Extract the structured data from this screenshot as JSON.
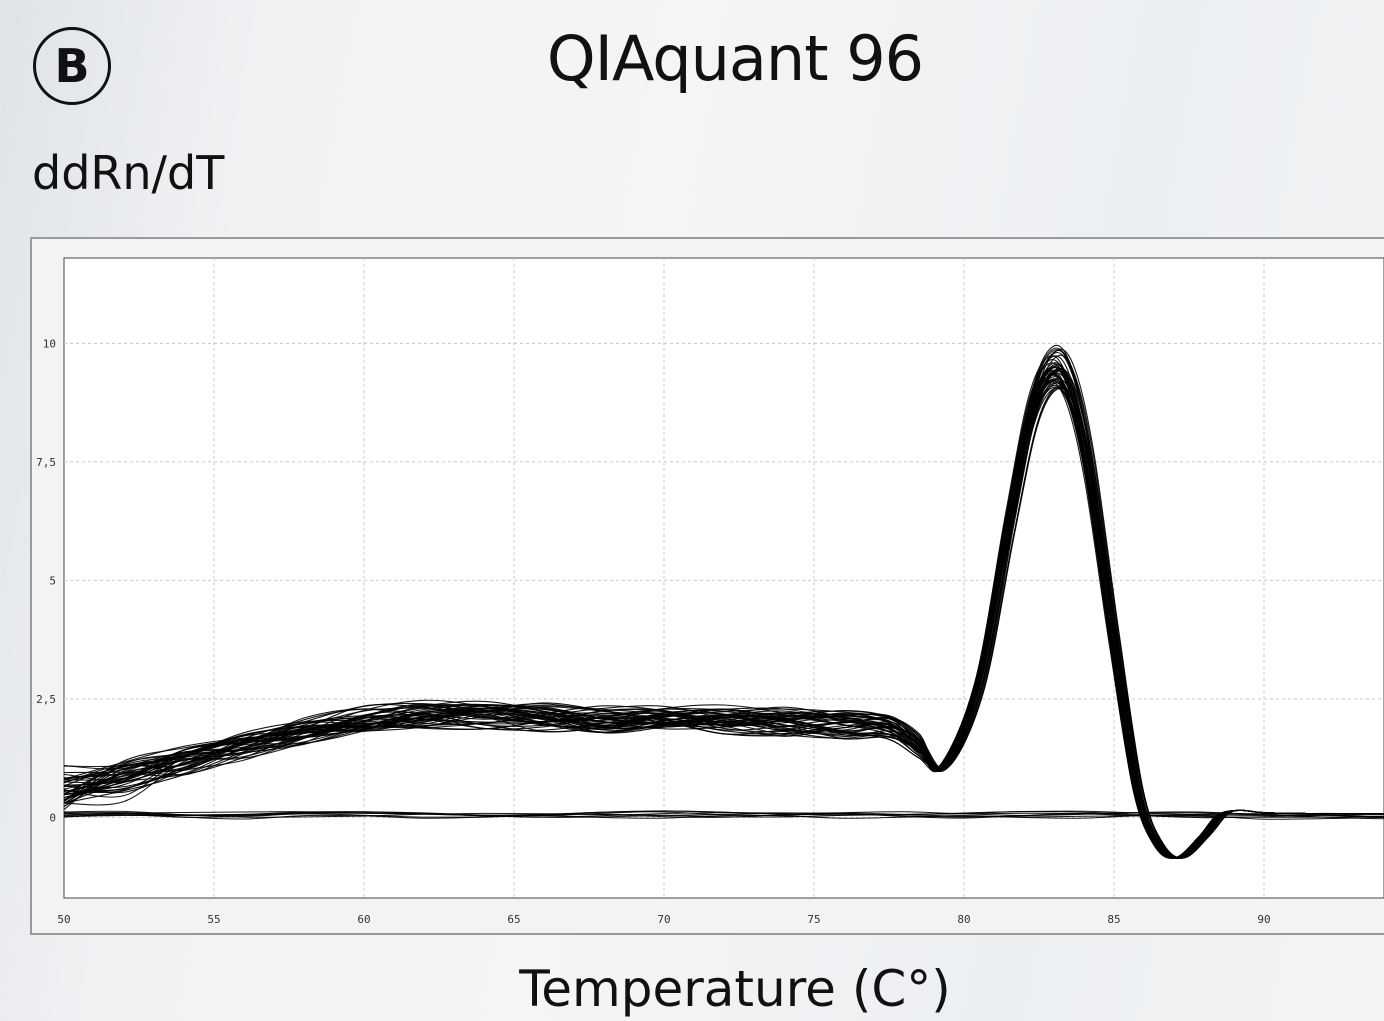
{
  "panel": {
    "badge": "B"
  },
  "chart_data": {
    "type": "line",
    "title": "QIAquant 96",
    "xlabel": "Temperature (C°)",
    "ylabel": "ddRn/dT",
    "xlim": [
      50,
      94
    ],
    "ylim": [
      -1.7,
      11.8
    ],
    "xticks": [
      50,
      55,
      60,
      65,
      70,
      75,
      80,
      85,
      90
    ],
    "xtick_labels": [
      "50",
      "55",
      "60",
      "65",
      "70",
      "75",
      "80",
      "85",
      "90"
    ],
    "yticks": [
      0,
      2.5,
      5,
      7.5,
      10
    ],
    "ytick_labels": [
      "0",
      "2,5",
      "5",
      "7,5",
      "10"
    ],
    "grid": true,
    "legend": "none",
    "line_color": "#000000",
    "series": [
      {
        "group": "melt-curves",
        "x": [
          50,
          52,
          54,
          56,
          58,
          60,
          62,
          64,
          66,
          68,
          70,
          72,
          74,
          76,
          77.5,
          78.5,
          79.3,
          80.5,
          81.5,
          82.3,
          83.0,
          83.6,
          84.2,
          85.0,
          85.8,
          86.5,
          87.2,
          88.0,
          88.6,
          89.2,
          90,
          92,
          94
        ],
        "values": [
          0.6,
          0.9,
          1.2,
          1.5,
          1.8,
          2.05,
          2.15,
          2.15,
          2.1,
          2.05,
          2.1,
          2.05,
          2.0,
          1.95,
          1.9,
          1.5,
          1.05,
          2.8,
          6.2,
          8.7,
          9.5,
          9.0,
          7.3,
          3.8,
          0.6,
          -0.6,
          -0.85,
          -0.4,
          0.05,
          0.15,
          0.1,
          0.08,
          0.08
        ]
      },
      {
        "group": "baseline",
        "x": [
          50,
          52,
          54,
          56,
          58,
          60,
          62,
          64,
          66,
          68,
          70,
          72,
          74,
          76,
          78,
          80,
          82,
          84,
          86,
          88,
          90,
          92,
          94
        ],
        "values": [
          0.05,
          0.08,
          0.06,
          0.04,
          0.05,
          0.05,
          0.06,
          0.05,
          0.04,
          0.05,
          0.06,
          0.05,
          0.05,
          0.06,
          0.05,
          0.04,
          0.05,
          0.06,
          0.05,
          0.05,
          0.04,
          0.02,
          0.0
        ]
      }
    ]
  }
}
